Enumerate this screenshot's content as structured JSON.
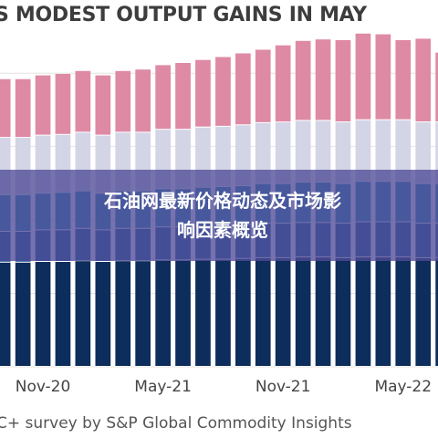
{
  "chart_data": {
    "type": "bar",
    "title": "S MODEST OUTPUT GAINS IN MAY",
    "xlabel": "",
    "ylabel": "",
    "tick_labels": [
      "Nov-20",
      "May-21",
      "Nov-21",
      "May-22"
    ],
    "grid": true,
    "stacked": true,
    "categories": [
      "Sep-20",
      "Oct-20",
      "Nov-20",
      "Dec-20",
      "Jan-21",
      "Feb-21",
      "Mar-21",
      "Apr-21",
      "May-21",
      "Jun-21",
      "Jul-21",
      "Aug-21",
      "Sep-21",
      "Oct-21",
      "Nov-21",
      "Dec-21",
      "Jan-22",
      "Feb-22",
      "Mar-22",
      "Apr-22",
      "May-22",
      "Jun-22",
      "Jul-22"
    ],
    "series": [
      {
        "color": "#0d2d5c",
        "values": [
          14.2,
          14.2,
          14.3,
          14.3,
          14.4,
          14.3,
          14.4,
          14.4,
          14.5,
          14.5,
          14.6,
          14.6,
          14.7,
          14.8,
          14.8,
          14.9,
          14.9,
          14.8,
          14.9,
          14.9,
          14.9,
          14.8,
          14.8
        ]
      },
      {
        "color": "#1f5d9a",
        "values": [
          4.2,
          4.2,
          4.3,
          4.3,
          4.4,
          4.3,
          4.4,
          4.4,
          4.5,
          4.5,
          4.5,
          4.6,
          4.6,
          4.7,
          4.7,
          4.7,
          4.7,
          4.7,
          4.8,
          4.8,
          4.8,
          4.7,
          4.7
        ]
      },
      {
        "color": "#2a8ab5",
        "values": [
          5.0,
          5.0,
          5.0,
          5.1,
          5.1,
          5.0,
          5.1,
          5.1,
          5.2,
          5.2,
          5.3,
          5.3,
          5.3,
          5.4,
          5.4,
          5.5,
          5.5,
          5.4,
          5.5,
          5.5,
          5.5,
          5.4,
          5.4
        ]
      },
      {
        "color": "#d3d5e6",
        "values": [
          7.8,
          7.8,
          7.9,
          7.9,
          8.0,
          7.9,
          8.0,
          8.0,
          8.1,
          8.1,
          8.2,
          8.2,
          8.3,
          8.3,
          8.4,
          8.4,
          8.4,
          8.4,
          8.4,
          8.4,
          8.4,
          8.4,
          8.4
        ]
      },
      {
        "color": "#de8aa5",
        "values": [
          8.0,
          8.0,
          8.2,
          8.3,
          8.4,
          8.2,
          8.4,
          8.6,
          8.8,
          9.1,
          9.2,
          9.5,
          9.8,
          10.0,
          10.5,
          10.9,
          11.1,
          11.2,
          11.8,
          11.7,
          10.9,
          11.4,
          9.5
        ]
      }
    ],
    "ylim": [
      0,
      45
    ],
    "x_range": [
      -0.6,
      22.2
    ]
  },
  "overlay": {
    "title_line1": "石油网最新价格动态及市场影",
    "title_line2": "响因素概览"
  },
  "source": "C+ survey by S&P Global Commodity Insights"
}
